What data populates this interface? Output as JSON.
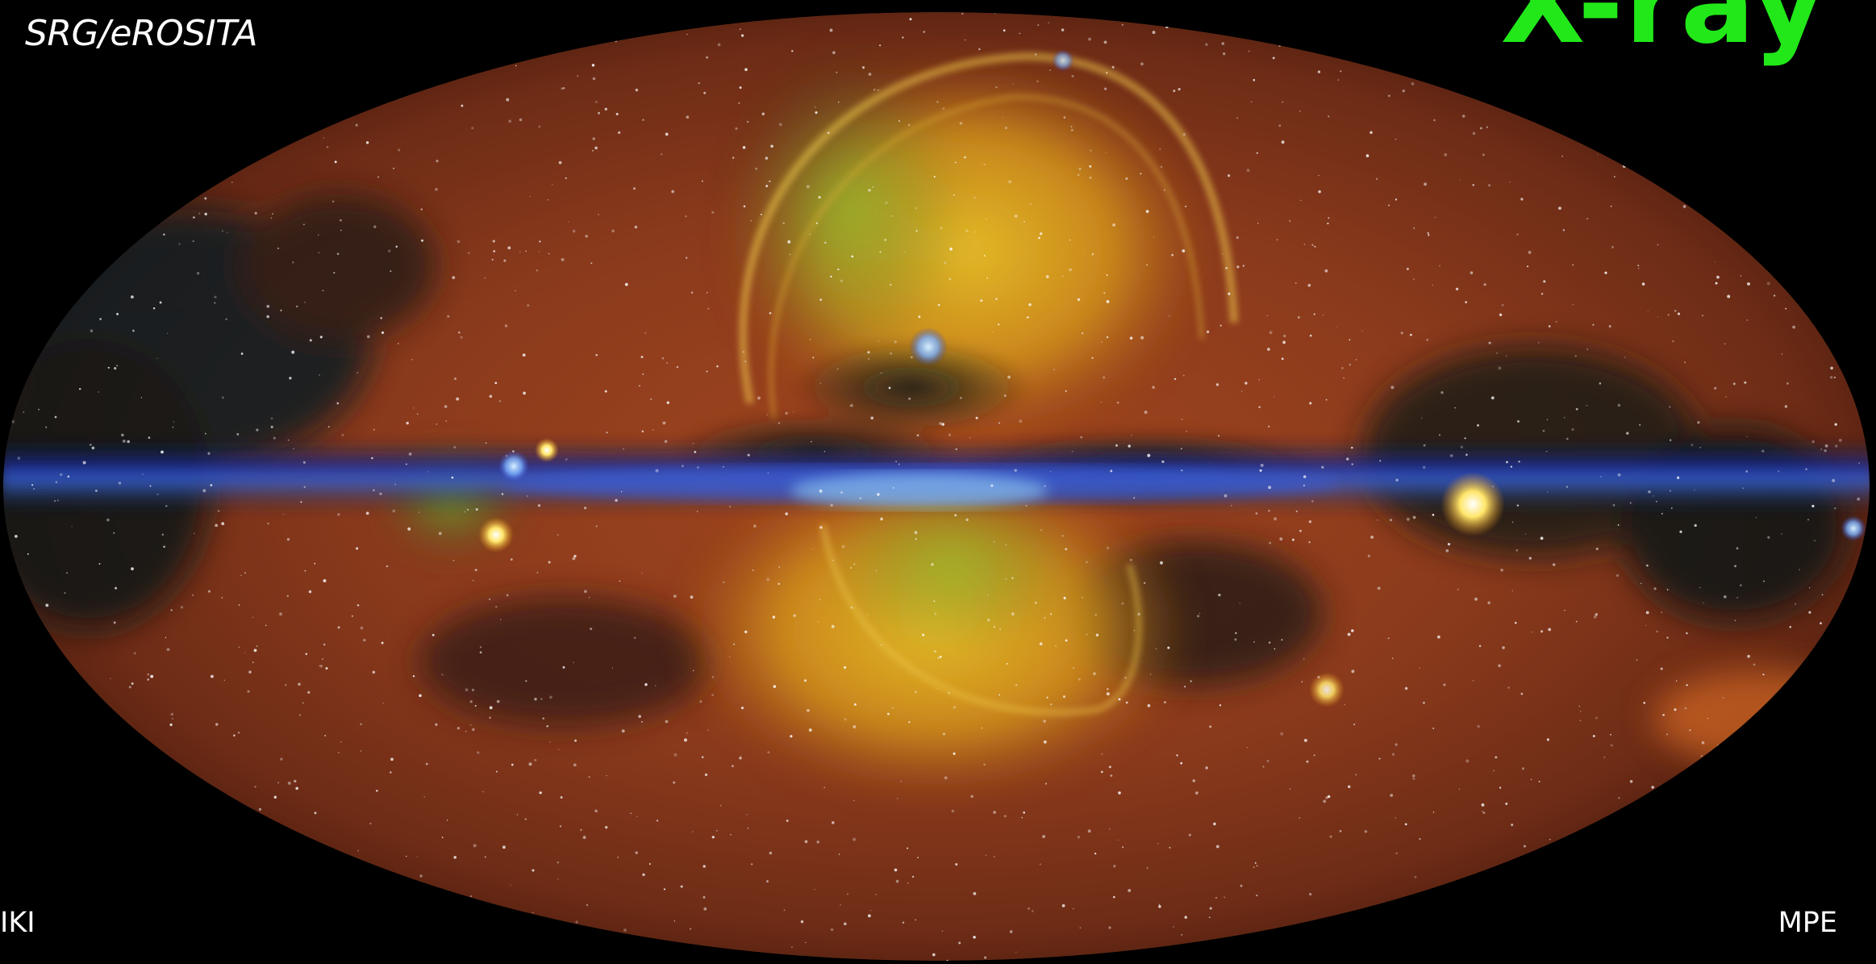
{
  "image": {
    "subject": "all-sky-map",
    "credits": {
      "top_left": "SRG/eROSITA",
      "bottom_left": "IKI",
      "bottom_right": "MPE"
    },
    "band_label": "X-ray",
    "colors": {
      "background": "#000000",
      "label_green": "#22e81a",
      "sky_red": "#8a3a1c",
      "bubble_yellow": "#e6b21f",
      "plane_blue": "#1a2a9a"
    }
  }
}
